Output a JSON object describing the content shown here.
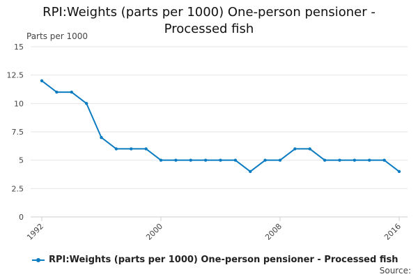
{
  "chart_data": {
    "type": "line",
    "title": [
      "RPI:Weights (parts per 1000) One-person pensioner -",
      "Processed fish"
    ],
    "ylabel": "Parts per 1000",
    "xlabel": "",
    "ylim": [
      0,
      15
    ],
    "yticks": [
      "0",
      "2.5",
      "5",
      "7.5",
      "10",
      "12.5",
      "15"
    ],
    "xlim": [
      1992,
      2016
    ],
    "xticks": [
      "1992",
      "2000",
      "2008",
      "2016"
    ],
    "grid": true,
    "legend_position": "bottom",
    "series": [
      {
        "name": "RPI:Weights (parts per 1000) One-person pensioner - Processed fish",
        "color": "#0b7cc1",
        "x": [
          1992,
          1993,
          1994,
          1995,
          1996,
          1997,
          1998,
          1999,
          2000,
          2001,
          2002,
          2003,
          2004,
          2005,
          2006,
          2007,
          2008,
          2009,
          2010,
          2011,
          2012,
          2013,
          2014,
          2015,
          2016
        ],
        "values": [
          12,
          11,
          11,
          10,
          7,
          6,
          6,
          6,
          5,
          5,
          5,
          5,
          5,
          5,
          4,
          5,
          5,
          6,
          6,
          5,
          5,
          5,
          5,
          5,
          4
        ]
      }
    ]
  },
  "source_label": "Source:"
}
